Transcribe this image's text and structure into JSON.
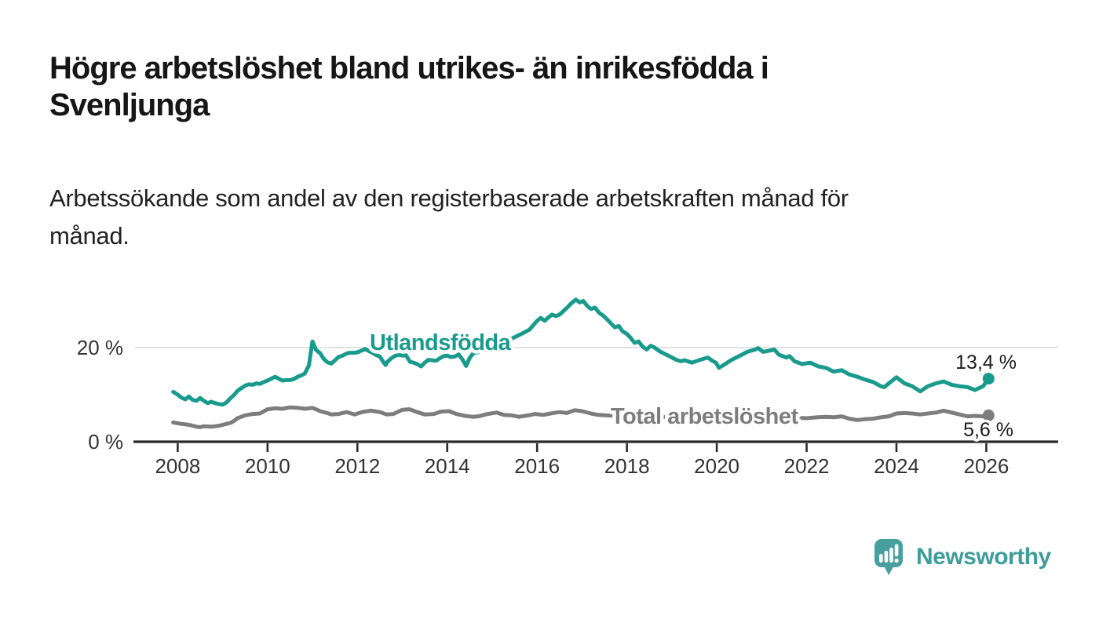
{
  "header": {
    "title": "Högre arbetslöshet bland utrikes- än inrikesfödda i\nSvenljunga",
    "subtitle": "Arbetssökande som andel av den registerbaserade arbetskraften månad för\nmånad."
  },
  "footer": {
    "brand": "Newsworthy"
  },
  "colors": {
    "accent_teal": "#189a8d",
    "line_gray": "#7d7d7d",
    "logo_teal": "#47a09f",
    "wordmark_teal": "#3e9c9b",
    "axis_dark": "#2a2a2a",
    "grid_gray": "#d9d9d9",
    "tick_text": "#333333",
    "value_text": "#1c1c1c"
  },
  "chart_data": {
    "type": "line",
    "title": "Högre arbetslöshet bland utrikes- än inrikesfödda i Svenljunga",
    "subtitle": "Arbetssökande som andel av den registerbaserade arbetskraften månad för månad.",
    "unit": "%",
    "xlim": [
      2007.05,
      2027.6
    ],
    "ylim": [
      0,
      33
    ],
    "grid": "single horizontal gridline at 20 %",
    "legend": "inline series labels",
    "x_ticks": [
      2008,
      2010,
      2012,
      2014,
      2016,
      2018,
      2020,
      2022,
      2024,
      2026
    ],
    "x_tick_labels": [
      "2008",
      "2010",
      "2012",
      "2014",
      "2016",
      "2018",
      "2020",
      "2022",
      "2024",
      "2026"
    ],
    "y_ticks": [
      {
        "value": 0,
        "label": "0 %"
      },
      {
        "value": 20,
        "label": "20 %"
      }
    ],
    "series": [
      {
        "name": "Utlandsfödda",
        "color": "#189a8d",
        "end_label": "13,4 %",
        "end_value": 13.4,
        "points": [
          [
            2007.9,
            10.6
          ],
          [
            2008.0,
            10.0
          ],
          [
            2008.08,
            9.4
          ],
          [
            2008.17,
            9.0
          ],
          [
            2008.25,
            9.6
          ],
          [
            2008.33,
            8.9
          ],
          [
            2008.42,
            8.7
          ],
          [
            2008.5,
            9.3
          ],
          [
            2008.58,
            8.7
          ],
          [
            2008.67,
            8.2
          ],
          [
            2008.75,
            8.5
          ],
          [
            2008.83,
            8.2
          ],
          [
            2008.92,
            8.0
          ],
          [
            2009.0,
            7.9
          ],
          [
            2009.08,
            8.3
          ],
          [
            2009.17,
            9.2
          ],
          [
            2009.25,
            9.9
          ],
          [
            2009.33,
            10.8
          ],
          [
            2009.42,
            11.4
          ],
          [
            2009.5,
            11.9
          ],
          [
            2009.58,
            12.2
          ],
          [
            2009.67,
            12.1
          ],
          [
            2009.75,
            12.4
          ],
          [
            2009.83,
            12.3
          ],
          [
            2009.92,
            12.7
          ],
          [
            2010.0,
            13.0
          ],
          [
            2010.08,
            13.4
          ],
          [
            2010.17,
            13.8
          ],
          [
            2010.25,
            13.4
          ],
          [
            2010.33,
            13.0
          ],
          [
            2010.42,
            13.1
          ],
          [
            2010.5,
            13.1
          ],
          [
            2010.58,
            13.3
          ],
          [
            2010.67,
            13.8
          ],
          [
            2010.75,
            14.1
          ],
          [
            2010.83,
            14.5
          ],
          [
            2010.92,
            16.2
          ],
          [
            2011.0,
            21.3
          ],
          [
            2011.08,
            19.5
          ],
          [
            2011.17,
            18.8
          ],
          [
            2011.25,
            17.6
          ],
          [
            2011.33,
            16.9
          ],
          [
            2011.42,
            16.6
          ],
          [
            2011.5,
            17.3
          ],
          [
            2011.58,
            18.0
          ],
          [
            2011.67,
            18.3
          ],
          [
            2011.75,
            18.7
          ],
          [
            2011.83,
            18.9
          ],
          [
            2011.92,
            18.9
          ],
          [
            2012.0,
            19.0
          ],
          [
            2012.08,
            19.3
          ],
          [
            2012.17,
            19.7
          ],
          [
            2012.25,
            19.3
          ],
          [
            2012.33,
            18.9
          ],
          [
            2012.42,
            18.4
          ],
          [
            2012.5,
            18.1
          ],
          [
            2012.58,
            16.9
          ],
          [
            2012.63,
            16.3
          ],
          [
            2012.67,
            17.0
          ],
          [
            2012.75,
            17.7
          ],
          [
            2012.83,
            18.2
          ],
          [
            2012.92,
            18.5
          ],
          [
            2013.0,
            18.3
          ],
          [
            2013.08,
            18.4
          ],
          [
            2013.17,
            17.0
          ],
          [
            2013.25,
            16.8
          ],
          [
            2013.33,
            16.5
          ],
          [
            2013.42,
            16.0
          ],
          [
            2013.5,
            16.8
          ],
          [
            2013.58,
            17.4
          ],
          [
            2013.67,
            17.3
          ],
          [
            2013.75,
            17.2
          ],
          [
            2013.83,
            17.7
          ],
          [
            2013.92,
            18.2
          ],
          [
            2014.0,
            18.3
          ],
          [
            2014.08,
            18.0
          ],
          [
            2014.17,
            18.1
          ],
          [
            2014.25,
            18.6
          ],
          [
            2014.33,
            17.6
          ],
          [
            2014.42,
            16.1
          ],
          [
            2014.5,
            17.8
          ],
          [
            2014.58,
            18.8
          ],
          [
            2014.67,
            19.0
          ],
          [
            2014.75,
            19.3
          ],
          [
            2014.83,
            19.6
          ],
          [
            2014.92,
            19.9
          ],
          [
            2015.0,
            20.2
          ],
          [
            2015.17,
            20.8
          ],
          [
            2015.33,
            21.4
          ],
          [
            2015.5,
            22.2
          ],
          [
            2015.67,
            23.0
          ],
          [
            2015.83,
            23.8
          ],
          [
            2016.0,
            25.7
          ],
          [
            2016.08,
            26.3
          ],
          [
            2016.17,
            25.7
          ],
          [
            2016.25,
            26.4
          ],
          [
            2016.33,
            27.0
          ],
          [
            2016.42,
            26.7
          ],
          [
            2016.5,
            27.0
          ],
          [
            2016.58,
            27.7
          ],
          [
            2016.67,
            28.5
          ],
          [
            2016.75,
            29.3
          ],
          [
            2016.86,
            30.2
          ],
          [
            2016.95,
            29.6
          ],
          [
            2017.03,
            29.9
          ],
          [
            2017.12,
            28.8
          ],
          [
            2017.2,
            28.2
          ],
          [
            2017.29,
            28.5
          ],
          [
            2017.38,
            27.4
          ],
          [
            2017.47,
            26.8
          ],
          [
            2017.56,
            26.0
          ],
          [
            2017.64,
            25.2
          ],
          [
            2017.73,
            24.3
          ],
          [
            2017.82,
            24.6
          ],
          [
            2017.9,
            23.5
          ],
          [
            2018.0,
            22.9
          ],
          [
            2018.08,
            22.1
          ],
          [
            2018.17,
            21.0
          ],
          [
            2018.26,
            21.3
          ],
          [
            2018.35,
            20.2
          ],
          [
            2018.44,
            19.6
          ],
          [
            2018.53,
            20.4
          ],
          [
            2018.6,
            20.1
          ],
          [
            2018.75,
            19.1
          ],
          [
            2018.92,
            18.3
          ],
          [
            2019.1,
            17.4
          ],
          [
            2019.2,
            17.1
          ],
          [
            2019.28,
            17.3
          ],
          [
            2019.45,
            16.8
          ],
          [
            2019.63,
            17.4
          ],
          [
            2019.8,
            17.9
          ],
          [
            2019.9,
            17.2
          ],
          [
            2019.98,
            16.8
          ],
          [
            2020.05,
            15.7
          ],
          [
            2020.15,
            16.3
          ],
          [
            2020.33,
            17.4
          ],
          [
            2020.5,
            18.2
          ],
          [
            2020.68,
            19.1
          ],
          [
            2020.86,
            19.6
          ],
          [
            2020.92,
            19.9
          ],
          [
            2021.03,
            19.1
          ],
          [
            2021.2,
            19.4
          ],
          [
            2021.28,
            19.6
          ],
          [
            2021.38,
            18.5
          ],
          [
            2021.55,
            17.9
          ],
          [
            2021.62,
            18.2
          ],
          [
            2021.73,
            17.1
          ],
          [
            2021.9,
            16.5
          ],
          [
            2022.08,
            16.8
          ],
          [
            2022.26,
            16.0
          ],
          [
            2022.43,
            15.7
          ],
          [
            2022.6,
            14.9
          ],
          [
            2022.78,
            15.2
          ],
          [
            2022.95,
            14.3
          ],
          [
            2023.13,
            13.8
          ],
          [
            2023.3,
            13.2
          ],
          [
            2023.48,
            12.7
          ],
          [
            2023.65,
            11.8
          ],
          [
            2023.73,
            11.6
          ],
          [
            2023.83,
            12.4
          ],
          [
            2024.0,
            13.7
          ],
          [
            2024.18,
            12.4
          ],
          [
            2024.35,
            11.8
          ],
          [
            2024.53,
            10.7
          ],
          [
            2024.7,
            11.8
          ],
          [
            2024.88,
            12.4
          ],
          [
            2025.05,
            12.8
          ],
          [
            2025.23,
            12.1
          ],
          [
            2025.4,
            11.8
          ],
          [
            2025.58,
            11.6
          ],
          [
            2025.75,
            11.0
          ],
          [
            2025.93,
            11.8
          ],
          [
            2026.05,
            13.4
          ]
        ]
      },
      {
        "name": "Total arbetslöshet",
        "color": "#7d7d7d",
        "end_label": "5,6 %",
        "end_value": 5.6,
        "points": [
          [
            2007.9,
            4.1
          ],
          [
            2008.08,
            3.8
          ],
          [
            2008.25,
            3.6
          ],
          [
            2008.42,
            3.2
          ],
          [
            2008.5,
            3.1
          ],
          [
            2008.58,
            3.3
          ],
          [
            2008.75,
            3.2
          ],
          [
            2008.92,
            3.4
          ],
          [
            2009.0,
            3.6
          ],
          [
            2009.17,
            4.0
          ],
          [
            2009.25,
            4.4
          ],
          [
            2009.33,
            5.0
          ],
          [
            2009.5,
            5.6
          ],
          [
            2009.67,
            5.9
          ],
          [
            2009.83,
            6.0
          ],
          [
            2010.0,
            6.9
          ],
          [
            2010.17,
            7.1
          ],
          [
            2010.33,
            7.0
          ],
          [
            2010.5,
            7.3
          ],
          [
            2010.67,
            7.2
          ],
          [
            2010.83,
            7.0
          ],
          [
            2011.0,
            7.2
          ],
          [
            2011.08,
            6.9
          ],
          [
            2011.17,
            6.5
          ],
          [
            2011.33,
            6.1
          ],
          [
            2011.42,
            5.8
          ],
          [
            2011.58,
            5.9
          ],
          [
            2011.67,
            6.1
          ],
          [
            2011.76,
            6.3
          ],
          [
            2011.83,
            6.1
          ],
          [
            2011.94,
            5.8
          ],
          [
            2012.1,
            6.3
          ],
          [
            2012.3,
            6.6
          ],
          [
            2012.5,
            6.3
          ],
          [
            2012.65,
            5.8
          ],
          [
            2012.8,
            5.9
          ],
          [
            2013.0,
            6.8
          ],
          [
            2013.16,
            6.9
          ],
          [
            2013.33,
            6.3
          ],
          [
            2013.5,
            5.8
          ],
          [
            2013.7,
            5.9
          ],
          [
            2013.86,
            6.4
          ],
          [
            2014.04,
            6.5
          ],
          [
            2014.2,
            5.9
          ],
          [
            2014.4,
            5.5
          ],
          [
            2014.56,
            5.3
          ],
          [
            2014.7,
            5.4
          ],
          [
            2014.9,
            5.9
          ],
          [
            2015.1,
            6.2
          ],
          [
            2015.26,
            5.7
          ],
          [
            2015.44,
            5.6
          ],
          [
            2015.6,
            5.3
          ],
          [
            2015.8,
            5.6
          ],
          [
            2015.96,
            5.9
          ],
          [
            2016.13,
            5.7
          ],
          [
            2016.3,
            6.0
          ],
          [
            2016.5,
            6.3
          ],
          [
            2016.66,
            6.1
          ],
          [
            2016.84,
            6.7
          ],
          [
            2017.0,
            6.5
          ],
          [
            2017.2,
            6.0
          ],
          [
            2017.36,
            5.7
          ],
          [
            2017.54,
            5.6
          ],
          [
            2017.8,
            5.5
          ],
          [
            2018.0,
            5.4
          ],
          [
            2018.25,
            5.3
          ],
          [
            2018.5,
            5.4
          ],
          [
            2018.75,
            5.2
          ],
          [
            2019.0,
            5.3
          ],
          [
            2019.25,
            5.4
          ],
          [
            2019.5,
            5.2
          ],
          [
            2019.75,
            5.3
          ],
          [
            2020.0,
            5.2
          ],
          [
            2020.25,
            5.5
          ],
          [
            2020.5,
            5.6
          ],
          [
            2020.75,
            5.4
          ],
          [
            2021.0,
            5.3
          ],
          [
            2021.25,
            5.4
          ],
          [
            2021.5,
            5.2
          ],
          [
            2021.75,
            5.1
          ],
          [
            2022.0,
            5.0
          ],
          [
            2022.25,
            5.2
          ],
          [
            2022.43,
            5.3
          ],
          [
            2022.6,
            5.2
          ],
          [
            2022.78,
            5.4
          ],
          [
            2022.95,
            4.9
          ],
          [
            2023.13,
            4.6
          ],
          [
            2023.3,
            4.8
          ],
          [
            2023.48,
            4.9
          ],
          [
            2023.65,
            5.2
          ],
          [
            2023.83,
            5.4
          ],
          [
            2024.0,
            6.0
          ],
          [
            2024.18,
            6.1
          ],
          [
            2024.35,
            6.0
          ],
          [
            2024.53,
            5.8
          ],
          [
            2024.7,
            6.0
          ],
          [
            2024.88,
            6.2
          ],
          [
            2025.05,
            6.6
          ],
          [
            2025.23,
            6.2
          ],
          [
            2025.4,
            5.8
          ],
          [
            2025.58,
            5.4
          ],
          [
            2025.75,
            5.5
          ],
          [
            2025.93,
            5.4
          ],
          [
            2026.05,
            5.6
          ]
        ]
      }
    ]
  }
}
